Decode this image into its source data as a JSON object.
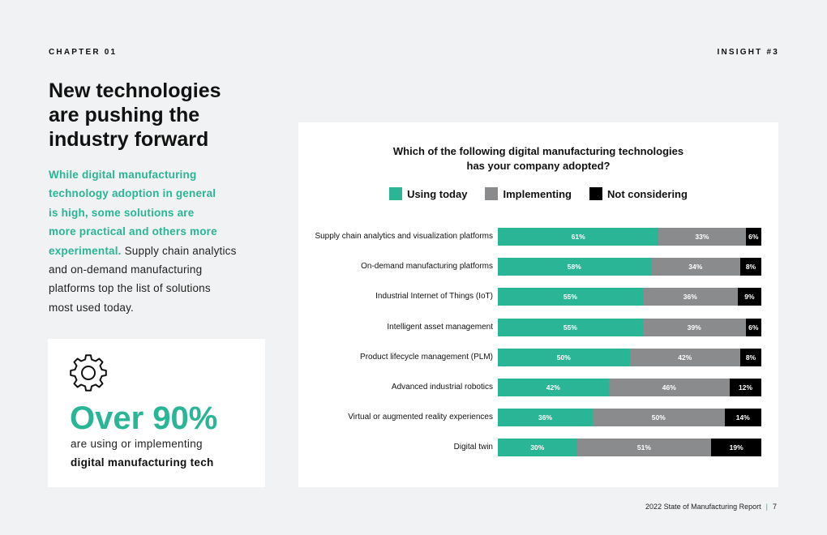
{
  "header": {
    "chapter": "CHAPTER 01",
    "insight": "INSIGHT #3"
  },
  "headline": [
    "New technologies",
    "are pushing the",
    "industry forward"
  ],
  "intro": {
    "highlight": [
      "While digital manufacturing",
      "technology adoption in general",
      "is high, some solutions are",
      "more practical and others more",
      "experimental."
    ],
    "rest_first": " Supply chain analytics",
    "rest": [
      "and on-demand manufacturing",
      "platforms top the list of solutions",
      "most used today."
    ]
  },
  "stat": {
    "icon": "gear-icon",
    "value": "Over 90%",
    "line1": "are using or implementing",
    "line2": "digital manufacturing tech"
  },
  "chart_data": {
    "type": "bar",
    "orientation": "horizontal-stacked",
    "title": [
      "Which of the following digital manufacturing technologies",
      "has your company adopted?"
    ],
    "xlim": [
      0,
      100
    ],
    "legend_position": "top",
    "categories": [
      "Supply chain analytics and visualization platforms",
      "On-demand manufacturing platforms",
      "Industrial Internet of Things (IoT)",
      "Intelligent asset management",
      "Product lifecycle management (PLM)",
      "Advanced industrial robotics",
      "Virtual or augmented reality experiences",
      "Digital twin"
    ],
    "series": [
      {
        "name": "Using today",
        "color": "#2bb597",
        "values": [
          61,
          58,
          55,
          55,
          50,
          42,
          36,
          30
        ]
      },
      {
        "name": "Implementing",
        "color": "#8a8b8d",
        "values": [
          33,
          34,
          36,
          39,
          42,
          46,
          50,
          51
        ]
      },
      {
        "name": "Not considering",
        "color": "#000000",
        "values": [
          6,
          8,
          9,
          6,
          8,
          12,
          14,
          19
        ]
      }
    ]
  },
  "footer": {
    "report": "2022 State of Manufacturing Report",
    "separator": "|",
    "page": "7"
  }
}
